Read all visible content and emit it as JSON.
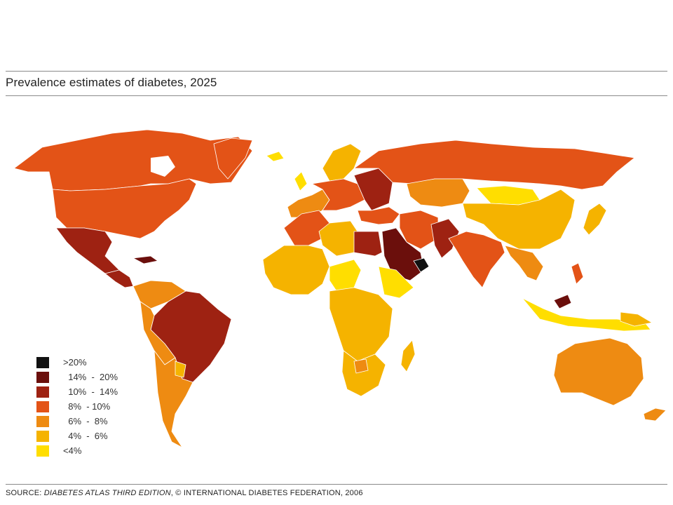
{
  "title": "Prevalence estimates of diabetes, 2025",
  "legend": [
    {
      "label": ">20%",
      "color": "#111111"
    },
    {
      "label": "  14%  -  20%",
      "color": "#6b0f0c"
    },
    {
      "label": "  10%  -  14%",
      "color": "#9e2212"
    },
    {
      "label": "  8%  - 10%",
      "color": "#e35317"
    },
    {
      "label": "  6%  -  8%",
      "color": "#ee8b12"
    },
    {
      "label": "  4%  -  6%",
      "color": "#f5b300"
    },
    {
      "label": "<4%",
      "color": "#ffde00"
    }
  ],
  "source": {
    "prefix": "SOURCE: ",
    "publication": "DIABETES ATLAS THIRD EDITION",
    "suffix": ", © INTERNATIONAL DIABETES FEDERATION, 2006"
  }
}
